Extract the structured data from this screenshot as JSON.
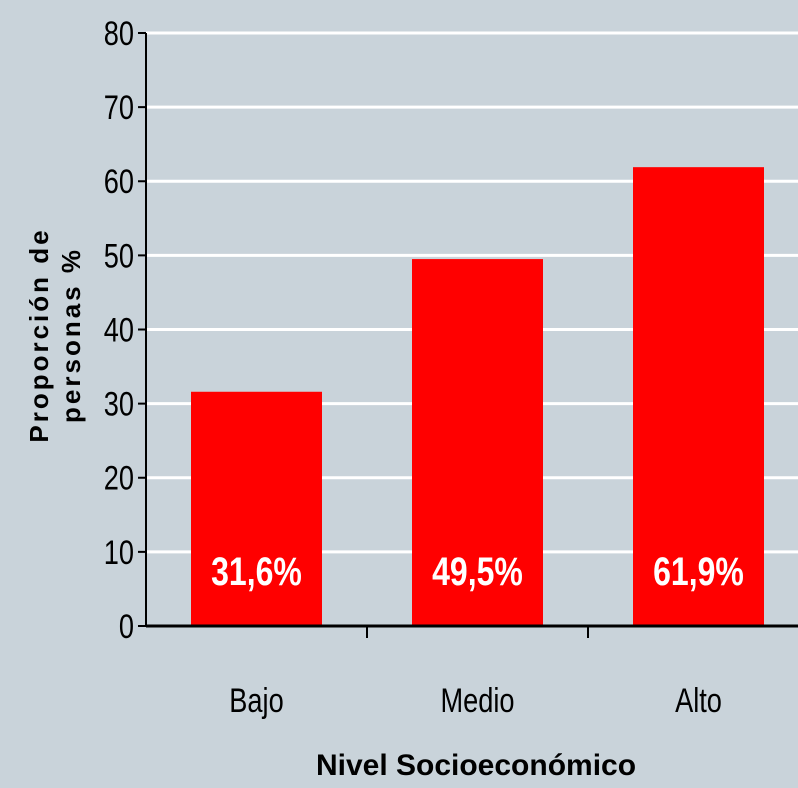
{
  "chart_data": {
    "type": "bar",
    "categories": [
      "Bajo",
      "Medio",
      "Alto"
    ],
    "values": [
      31.6,
      49.5,
      61.9
    ],
    "data_labels": [
      "31,6%",
      "49,5%",
      "61,9%"
    ],
    "xlabel": "Nivel Socioeconómico",
    "ylabel_lines": [
      "Proporción de",
      "personas %"
    ],
    "ylim": [
      0,
      80
    ],
    "yticks": [
      0,
      10,
      20,
      30,
      40,
      50,
      60,
      70,
      80
    ],
    "grid": true,
    "legend": "none",
    "colors": {
      "bar": "#ff0000",
      "background": "#c9d3da",
      "grid": "#ffffff",
      "axis": "#000000",
      "data_label": "#ffffff"
    }
  }
}
